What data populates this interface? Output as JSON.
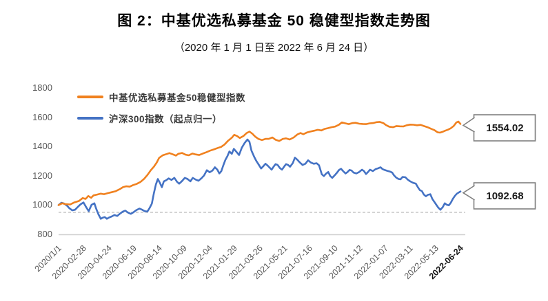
{
  "title": "图 2：中基优选私募基金 50 稳健型指数走势图",
  "subtitle": "（2020 年 1 月 1 日至 2022 年 6 月 24 日）",
  "colors": {
    "fund_line": "#F0811F",
    "csi300_line": "#4472C4",
    "axis_text": "#595959",
    "axis_line": "#D0D0D0",
    "reference_dash": "#C6C6C6",
    "callout_border": "#7F7F7F"
  },
  "chart_data": {
    "type": "line",
    "title": "图 2：中基优选私募基金 50 稳健型指数走势图",
    "subtitle": "（2020 年 1 月 1 日至 2022 年 6 月 24 日）",
    "ylim": [
      800,
      1800
    ],
    "y_ticks": [
      1800,
      1600,
      1400,
      1200,
      1000,
      800
    ],
    "x_tick_labels": [
      "2020/1/1",
      "2020-02-28",
      "2020-04-24",
      "2020-06-19",
      "2020-08-14",
      "2020-10-09",
      "2020-12-04",
      "2021-01-29",
      "2021-03-26",
      "2021-05-21",
      "2021-07-16",
      "2021-09-10",
      "2021-11-12",
      "2022-01-07",
      "2022-03-11",
      "2022-05-13",
      "2022-06-24"
    ],
    "grid": "off",
    "legend_position": "top-left",
    "reference_line": {
      "value": 950,
      "style": "dashed"
    },
    "series": [
      {
        "name": "中基优选私募基金50稳健型指数",
        "color": "#F0811F",
        "end_value_label": "1554.02",
        "points": [
          [
            0.0,
            1000
          ],
          [
            0.009,
            1012
          ],
          [
            0.017,
            1006
          ],
          [
            0.029,
            1004
          ],
          [
            0.039,
            1018
          ],
          [
            0.051,
            1028
          ],
          [
            0.06,
            1048
          ],
          [
            0.067,
            1042
          ],
          [
            0.074,
            1062
          ],
          [
            0.081,
            1050
          ],
          [
            0.087,
            1066
          ],
          [
            0.096,
            1072
          ],
          [
            0.105,
            1078
          ],
          [
            0.113,
            1074
          ],
          [
            0.122,
            1081
          ],
          [
            0.132,
            1088
          ],
          [
            0.142,
            1095
          ],
          [
            0.153,
            1110
          ],
          [
            0.16,
            1122
          ],
          [
            0.168,
            1128
          ],
          [
            0.177,
            1126
          ],
          [
            0.185,
            1136
          ],
          [
            0.194,
            1144
          ],
          [
            0.204,
            1158
          ],
          [
            0.213,
            1180
          ],
          [
            0.221,
            1205
          ],
          [
            0.23,
            1240
          ],
          [
            0.237,
            1262
          ],
          [
            0.244,
            1290
          ],
          [
            0.25,
            1322
          ],
          [
            0.259,
            1340
          ],
          [
            0.268,
            1348
          ],
          [
            0.276,
            1355
          ],
          [
            0.283,
            1348
          ],
          [
            0.292,
            1338
          ],
          [
            0.298,
            1350
          ],
          [
            0.307,
            1356
          ],
          [
            0.316,
            1344
          ],
          [
            0.324,
            1340
          ],
          [
            0.333,
            1352
          ],
          [
            0.341,
            1346
          ],
          [
            0.35,
            1342
          ],
          [
            0.359,
            1352
          ],
          [
            0.367,
            1360
          ],
          [
            0.377,
            1372
          ],
          [
            0.386,
            1380
          ],
          [
            0.396,
            1390
          ],
          [
            0.405,
            1398
          ],
          [
            0.413,
            1414
          ],
          [
            0.422,
            1440
          ],
          [
            0.431,
            1460
          ],
          [
            0.437,
            1480
          ],
          [
            0.444,
            1472
          ],
          [
            0.451,
            1458
          ],
          [
            0.46,
            1472
          ],
          [
            0.468,
            1492
          ],
          [
            0.475,
            1502
          ],
          [
            0.482,
            1488
          ],
          [
            0.489,
            1468
          ],
          [
            0.497,
            1452
          ],
          [
            0.506,
            1444
          ],
          [
            0.515,
            1452
          ],
          [
            0.523,
            1452
          ],
          [
            0.532,
            1462
          ],
          [
            0.54,
            1446
          ],
          [
            0.549,
            1438
          ],
          [
            0.558,
            1452
          ],
          [
            0.566,
            1456
          ],
          [
            0.575,
            1448
          ],
          [
            0.585,
            1462
          ],
          [
            0.594,
            1482
          ],
          [
            0.602,
            1492
          ],
          [
            0.609,
            1484
          ],
          [
            0.618,
            1496
          ],
          [
            0.626,
            1502
          ],
          [
            0.636,
            1508
          ],
          [
            0.645,
            1514
          ],
          [
            0.654,
            1510
          ],
          [
            0.662,
            1520
          ],
          [
            0.671,
            1526
          ],
          [
            0.679,
            1532
          ],
          [
            0.688,
            1536
          ],
          [
            0.697,
            1548
          ],
          [
            0.705,
            1565
          ],
          [
            0.714,
            1558
          ],
          [
            0.722,
            1553
          ],
          [
            0.731,
            1560
          ],
          [
            0.739,
            1562
          ],
          [
            0.748,
            1556
          ],
          [
            0.757,
            1554
          ],
          [
            0.765,
            1553
          ],
          [
            0.774,
            1558
          ],
          [
            0.782,
            1560
          ],
          [
            0.791,
            1566
          ],
          [
            0.799,
            1568
          ],
          [
            0.808,
            1560
          ],
          [
            0.815,
            1546
          ],
          [
            0.823,
            1535
          ],
          [
            0.832,
            1532
          ],
          [
            0.841,
            1540
          ],
          [
            0.849,
            1538
          ],
          [
            0.858,
            1537
          ],
          [
            0.866,
            1545
          ],
          [
            0.875,
            1550
          ],
          [
            0.883,
            1549
          ],
          [
            0.892,
            1545
          ],
          [
            0.901,
            1548
          ],
          [
            0.909,
            1540
          ],
          [
            0.918,
            1532
          ],
          [
            0.926,
            1522
          ],
          [
            0.935,
            1512
          ],
          [
            0.943,
            1497
          ],
          [
            0.949,
            1495
          ],
          [
            0.955,
            1500
          ],
          [
            0.962,
            1508
          ],
          [
            0.969,
            1515
          ],
          [
            0.976,
            1525
          ],
          [
            0.983,
            1540
          ],
          [
            0.99,
            1565
          ],
          [
            0.995,
            1570
          ],
          [
            1.0,
            1554
          ]
        ]
      },
      {
        "name": "沪深300指数（起点归一）",
        "color": "#4472C4",
        "end_value_label": "1092.68",
        "points": [
          [
            0.0,
            1000
          ],
          [
            0.007,
            1016
          ],
          [
            0.014,
            1010
          ],
          [
            0.021,
            996
          ],
          [
            0.027,
            978
          ],
          [
            0.034,
            964
          ],
          [
            0.041,
            968
          ],
          [
            0.048,
            988
          ],
          [
            0.055,
            1006
          ],
          [
            0.062,
            1018
          ],
          [
            0.069,
            984
          ],
          [
            0.075,
            958
          ],
          [
            0.082,
            1002
          ],
          [
            0.089,
            1012
          ],
          [
            0.094,
            972
          ],
          [
            0.099,
            938
          ],
          [
            0.105,
            906
          ],
          [
            0.11,
            914
          ],
          [
            0.115,
            918
          ],
          [
            0.12,
            906
          ],
          [
            0.125,
            914
          ],
          [
            0.132,
            922
          ],
          [
            0.139,
            932
          ],
          [
            0.146,
            926
          ],
          [
            0.153,
            942
          ],
          [
            0.16,
            956
          ],
          [
            0.166,
            962
          ],
          [
            0.173,
            948
          ],
          [
            0.18,
            940
          ],
          [
            0.187,
            952
          ],
          [
            0.194,
            966
          ],
          [
            0.201,
            976
          ],
          [
            0.208,
            968
          ],
          [
            0.214,
            958
          ],
          [
            0.221,
            956
          ],
          [
            0.226,
            978
          ],
          [
            0.232,
            1010
          ],
          [
            0.237,
            1080
          ],
          [
            0.242,
            1140
          ],
          [
            0.247,
            1178
          ],
          [
            0.252,
            1152
          ],
          [
            0.257,
            1122
          ],
          [
            0.262,
            1162
          ],
          [
            0.268,
            1170
          ],
          [
            0.274,
            1182
          ],
          [
            0.281,
            1172
          ],
          [
            0.288,
            1186
          ],
          [
            0.295,
            1158
          ],
          [
            0.3,
            1146
          ],
          [
            0.307,
            1164
          ],
          [
            0.314,
            1186
          ],
          [
            0.321,
            1178
          ],
          [
            0.328,
            1162
          ],
          [
            0.334,
            1186
          ],
          [
            0.341,
            1174
          ],
          [
            0.348,
            1166
          ],
          [
            0.355,
            1182
          ],
          [
            0.362,
            1202
          ],
          [
            0.369,
            1238
          ],
          [
            0.376,
            1224
          ],
          [
            0.383,
            1236
          ],
          [
            0.389,
            1258
          ],
          [
            0.395,
            1242
          ],
          [
            0.4,
            1216
          ],
          [
            0.405,
            1232
          ],
          [
            0.41,
            1272
          ],
          [
            0.415,
            1308
          ],
          [
            0.42,
            1334
          ],
          [
            0.425,
            1366
          ],
          [
            0.431,
            1350
          ],
          [
            0.436,
            1384
          ],
          [
            0.443,
            1362
          ],
          [
            0.449,
            1342
          ],
          [
            0.456,
            1392
          ],
          [
            0.463,
            1424
          ],
          [
            0.47,
            1448
          ],
          [
            0.475,
            1432
          ],
          [
            0.48,
            1372
          ],
          [
            0.487,
            1328
          ],
          [
            0.492,
            1302
          ],
          [
            0.499,
            1272
          ],
          [
            0.504,
            1250
          ],
          [
            0.509,
            1264
          ],
          [
            0.515,
            1282
          ],
          [
            0.52,
            1270
          ],
          [
            0.525,
            1256
          ],
          [
            0.53,
            1242
          ],
          [
            0.535,
            1262
          ],
          [
            0.54,
            1280
          ],
          [
            0.545,
            1274
          ],
          [
            0.551,
            1252
          ],
          [
            0.556,
            1242
          ],
          [
            0.561,
            1262
          ],
          [
            0.566,
            1280
          ],
          [
            0.571,
            1274
          ],
          [
            0.576,
            1262
          ],
          [
            0.583,
            1288
          ],
          [
            0.588,
            1324
          ],
          [
            0.594,
            1310
          ],
          [
            0.6,
            1292
          ],
          [
            0.607,
            1274
          ],
          [
            0.614,
            1282
          ],
          [
            0.621,
            1306
          ],
          [
            0.628,
            1290
          ],
          [
            0.635,
            1282
          ],
          [
            0.642,
            1286
          ],
          [
            0.648,
            1272
          ],
          [
            0.655,
            1210
          ],
          [
            0.66,
            1198
          ],
          [
            0.666,
            1216
          ],
          [
            0.671,
            1226
          ],
          [
            0.676,
            1198
          ],
          [
            0.681,
            1186
          ],
          [
            0.688,
            1206
          ],
          [
            0.693,
            1222
          ],
          [
            0.698,
            1240
          ],
          [
            0.703,
            1248
          ],
          [
            0.708,
            1232
          ],
          [
            0.714,
            1216
          ],
          [
            0.719,
            1226
          ],
          [
            0.724,
            1240
          ],
          [
            0.729,
            1236
          ],
          [
            0.734,
            1222
          ],
          [
            0.741,
            1216
          ],
          [
            0.748,
            1226
          ],
          [
            0.755,
            1242
          ],
          [
            0.76,
            1232
          ],
          [
            0.765,
            1212
          ],
          [
            0.77,
            1226
          ],
          [
            0.775,
            1242
          ],
          [
            0.782,
            1232
          ],
          [
            0.789,
            1246
          ],
          [
            0.796,
            1252
          ],
          [
            0.801,
            1258
          ],
          [
            0.806,
            1246
          ],
          [
            0.811,
            1240
          ],
          [
            0.818,
            1234
          ],
          [
            0.825,
            1228
          ],
          [
            0.83,
            1222
          ],
          [
            0.835,
            1202
          ],
          [
            0.84,
            1188
          ],
          [
            0.846,
            1178
          ],
          [
            0.851,
            1176
          ],
          [
            0.856,
            1192
          ],
          [
            0.863,
            1190
          ],
          [
            0.868,
            1176
          ],
          [
            0.875,
            1162
          ],
          [
            0.882,
            1152
          ],
          [
            0.889,
            1146
          ],
          [
            0.894,
            1122
          ],
          [
            0.899,
            1102
          ],
          [
            0.904,
            1096
          ],
          [
            0.909,
            1072
          ],
          [
            0.914,
            1060
          ],
          [
            0.919,
            1070
          ],
          [
            0.925,
            1074
          ],
          [
            0.93,
            1042
          ],
          [
            0.935,
            1022
          ],
          [
            0.94,
            1002
          ],
          [
            0.945,
            982
          ],
          [
            0.95,
            968
          ],
          [
            0.956,
            986
          ],
          [
            0.961,
            1012
          ],
          [
            0.966,
            1002
          ],
          [
            0.971,
            998
          ],
          [
            0.976,
            1016
          ],
          [
            0.981,
            1042
          ],
          [
            0.986,
            1062
          ],
          [
            0.991,
            1078
          ],
          [
            1.0,
            1093
          ]
        ]
      }
    ]
  },
  "legend": {
    "items": [
      {
        "label": "中基优选私募基金50稳健型指数",
        "color": "#F0811F"
      },
      {
        "label": "沪深300指数（起点归一）",
        "color": "#4472C4"
      }
    ]
  },
  "callouts": [
    {
      "value": "1554.02"
    },
    {
      "value": "1092.68"
    }
  ]
}
